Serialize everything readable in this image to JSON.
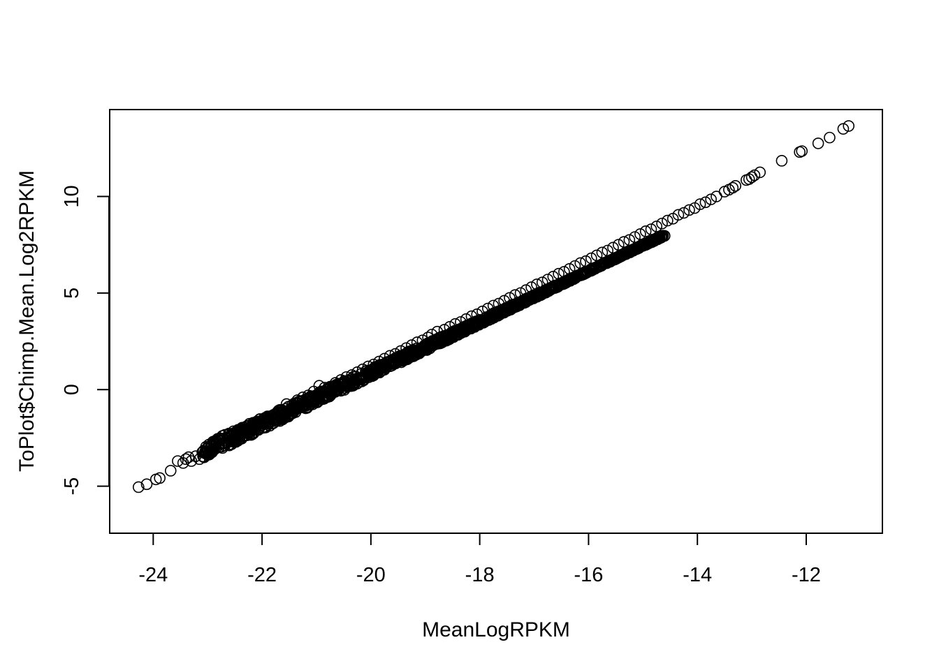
{
  "chart_data": {
    "type": "scatter",
    "title": "",
    "xlabel": "MeanLogRPKM",
    "ylabel": "ToPlot$Chimp.Mean.Log2RPKM",
    "xlim": [
      -24.8,
      -10.6
    ],
    "ylim": [
      -7.4,
      14.5
    ],
    "xticks": [
      -24,
      -22,
      -20,
      -18,
      -16,
      -14,
      -12
    ],
    "yticks": [
      -5,
      0,
      5,
      10
    ],
    "xtick_labels": [
      "-24",
      "-22",
      "-20",
      "-18",
      "-16",
      "-14",
      "-12"
    ],
    "ytick_labels": [
      "-5",
      "0",
      "5",
      "10"
    ],
    "grid": false,
    "legend": "none",
    "marker": "open-circle",
    "color": "#000000",
    "trend": {
      "slope": 1.33,
      "intercept": 27.4,
      "note": "points lie tightly along y ≈ 1.33·x + 27.4, slight upward scatter at low x"
    },
    "points": [
      [
        -24.27,
        -5.05
      ],
      [
        -24.12,
        -4.9
      ],
      [
        -23.95,
        -4.65
      ],
      [
        -23.88,
        -4.58
      ],
      [
        -23.68,
        -4.2
      ],
      [
        -23.55,
        -3.7
      ],
      [
        -23.45,
        -3.8
      ],
      [
        -23.4,
        -3.6
      ],
      [
        -23.35,
        -3.5
      ],
      [
        -23.3,
        -3.7
      ],
      [
        -23.22,
        -3.45
      ],
      [
        -23.15,
        -3.6
      ],
      [
        -23.05,
        -3.3
      ],
      [
        -22.95,
        -3.15
      ],
      [
        -22.85,
        -3.05
      ],
      [
        -22.75,
        -2.8
      ],
      [
        -22.65,
        -2.75
      ],
      [
        -22.55,
        -2.55
      ],
      [
        -22.45,
        -2.35
      ],
      [
        -22.35,
        -2.25
      ],
      [
        -22.25,
        -2.05
      ],
      [
        -22.15,
        -1.75
      ],
      [
        -22.05,
        -1.55
      ],
      [
        -21.95,
        -1.6
      ],
      [
        -21.85,
        -1.45
      ],
      [
        -21.75,
        -1.25
      ],
      [
        -21.65,
        -1.05
      ],
      [
        -21.55,
        -0.75
      ],
      [
        -21.45,
        -0.8
      ],
      [
        -21.35,
        -0.55
      ],
      [
        -21.25,
        -0.4
      ],
      [
        -21.15,
        -0.3
      ],
      [
        -21.05,
        -0.1
      ],
      [
        -20.95,
        0.2
      ],
      [
        -20.85,
        0.1
      ],
      [
        -20.75,
        0.15
      ],
      [
        -20.65,
        0.35
      ],
      [
        -20.55,
        0.5
      ],
      [
        -20.45,
        0.65
      ],
      [
        -20.35,
        0.75
      ],
      [
        -20.25,
        0.9
      ],
      [
        -20.15,
        1.05
      ],
      [
        -20.05,
        1.2
      ],
      [
        -19.95,
        1.3
      ],
      [
        -19.85,
        1.45
      ],
      [
        -19.75,
        1.6
      ],
      [
        -19.65,
        1.75
      ],
      [
        -19.55,
        1.85
      ],
      [
        -19.45,
        2.0
      ],
      [
        -19.35,
        2.15
      ],
      [
        -19.25,
        2.3
      ],
      [
        -19.15,
        2.45
      ],
      [
        -19.05,
        2.55
      ],
      [
        -18.95,
        2.7
      ],
      [
        -18.88,
        2.85
      ],
      [
        -18.78,
        3.0
      ],
      [
        -18.65,
        3.1
      ],
      [
        -18.55,
        3.25
      ],
      [
        -18.45,
        3.4
      ],
      [
        -18.35,
        3.5
      ],
      [
        -18.25,
        3.65
      ],
      [
        -18.15,
        3.8
      ],
      [
        -18.05,
        3.9
      ],
      [
        -17.95,
        4.05
      ],
      [
        -17.85,
        4.2
      ],
      [
        -17.75,
        4.35
      ],
      [
        -17.65,
        4.45
      ],
      [
        -17.55,
        4.6
      ],
      [
        -17.45,
        4.75
      ],
      [
        -17.35,
        4.9
      ],
      [
        -17.25,
        5.0
      ],
      [
        -17.15,
        5.15
      ],
      [
        -17.05,
        5.3
      ],
      [
        -16.95,
        5.45
      ],
      [
        -16.85,
        5.55
      ],
      [
        -16.75,
        5.7
      ],
      [
        -16.65,
        5.85
      ],
      [
        -16.55,
        6.0
      ],
      [
        -16.45,
        6.1
      ],
      [
        -16.35,
        6.25
      ],
      [
        -16.25,
        6.4
      ],
      [
        -16.15,
        6.55
      ],
      [
        -16.05,
        6.65
      ],
      [
        -15.95,
        6.8
      ],
      [
        -15.85,
        6.95
      ],
      [
        -15.75,
        7.1
      ],
      [
        -15.65,
        7.2
      ],
      [
        -15.55,
        7.35
      ],
      [
        -15.45,
        7.5
      ],
      [
        -15.35,
        7.65
      ],
      [
        -15.25,
        7.75
      ],
      [
        -15.15,
        7.9
      ],
      [
        -15.05,
        8.05
      ],
      [
        -14.95,
        8.2
      ],
      [
        -14.85,
        8.3
      ],
      [
        -14.75,
        8.45
      ],
      [
        -14.65,
        8.6
      ],
      [
        -14.55,
        8.75
      ],
      [
        -14.45,
        8.85
      ],
      [
        -14.35,
        9.05
      ],
      [
        -14.25,
        9.15
      ],
      [
        -14.15,
        9.3
      ],
      [
        -14.05,
        9.4
      ],
      [
        -13.95,
        9.6
      ],
      [
        -13.85,
        9.7
      ],
      [
        -13.75,
        9.85
      ],
      [
        -13.65,
        10.0
      ],
      [
        -13.5,
        10.25
      ],
      [
        -13.42,
        10.35
      ],
      [
        -13.35,
        10.45
      ],
      [
        -13.3,
        10.55
      ],
      [
        -13.1,
        10.85
      ],
      [
        -13.05,
        10.9
      ],
      [
        -13.0,
        11.0
      ],
      [
        -12.95,
        11.1
      ],
      [
        -12.85,
        11.25
      ],
      [
        -12.45,
        11.85
      ],
      [
        -12.12,
        12.3
      ],
      [
        -12.08,
        12.35
      ],
      [
        -11.78,
        12.75
      ],
      [
        -11.57,
        13.05
      ],
      [
        -11.32,
        13.5
      ],
      [
        -11.22,
        13.65
      ]
    ]
  }
}
